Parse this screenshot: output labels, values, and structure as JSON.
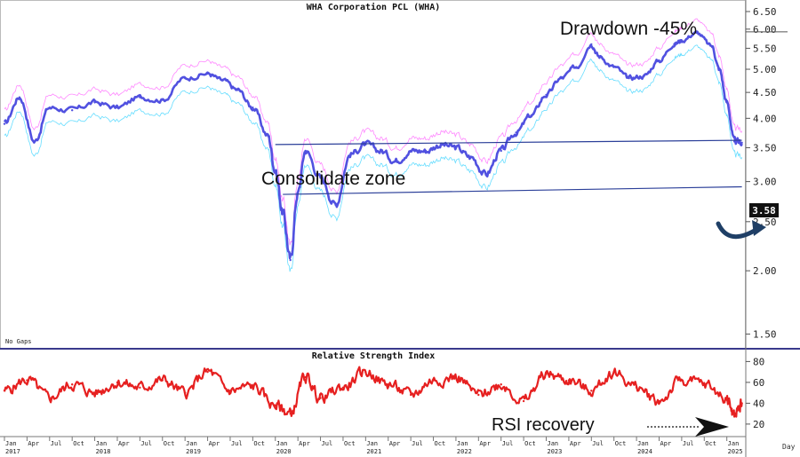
{
  "chart_data": [
    {
      "type": "line",
      "title": "WHA Corporation PCL (WHA)",
      "note": "No Gaps",
      "y_scale": "log",
      "ylim": [
        1.42,
        6.85
      ],
      "y_ticks": [
        "6.50",
        "6.00",
        "5.50",
        "5.00",
        "4.50",
        "4.00",
        "3.50",
        "3.00",
        "2.50",
        "2.00",
        "1.50"
      ],
      "last_price_label": "3.58",
      "annotations": {
        "drawdown": "Drawdown -45%",
        "consolidate": "Consolidate zone"
      },
      "series": [
        {
          "color": "#5151e0",
          "x": [
            "2017-01",
            "2017-03",
            "2017-05",
            "2017-07",
            "2017-10",
            "2018-01",
            "2018-04",
            "2018-07",
            "2018-10",
            "2019-01",
            "2019-04",
            "2019-06",
            "2019-08",
            "2019-10",
            "2019-12",
            "2020-01",
            "2020-02",
            "2020-03",
            "2020-04",
            "2020-05",
            "2020-07",
            "2020-09",
            "2020-11",
            "2021-01",
            "2021-03",
            "2021-05",
            "2021-07",
            "2021-09",
            "2021-11",
            "2022-01",
            "2022-03",
            "2022-05",
            "2022-07",
            "2022-09",
            "2022-11",
            "2023-01",
            "2023-03",
            "2023-05",
            "2023-07",
            "2023-08",
            "2023-10",
            "2023-12",
            "2024-02",
            "2024-04",
            "2024-06",
            "2024-07",
            "2024-09",
            "2024-11",
            "2024-12",
            "2025-01",
            "2025-02",
            "2025-03"
          ],
          "y": [
            3.9,
            4.4,
            3.6,
            4.2,
            4.15,
            4.3,
            4.2,
            4.4,
            4.35,
            4.8,
            4.9,
            4.75,
            4.55,
            4.2,
            3.7,
            3.15,
            2.6,
            2.1,
            2.85,
            3.45,
            3.05,
            2.7,
            3.4,
            3.55,
            3.45,
            3.3,
            3.45,
            3.45,
            3.55,
            3.5,
            3.35,
            3.1,
            3.45,
            3.75,
            4.05,
            4.45,
            4.8,
            5.05,
            5.6,
            5.3,
            5.05,
            4.8,
            4.85,
            5.2,
            5.6,
            5.7,
            5.9,
            5.55,
            5.0,
            4.3,
            3.6,
            3.58
          ]
        }
      ],
      "trendlines": [
        {
          "x": [
            "2020-01",
            "2025-03"
          ],
          "y": [
            3.55,
            3.62
          ]
        },
        {
          "x": [
            "2020-02",
            "2025-03"
          ],
          "y": [
            2.83,
            2.93
          ]
        }
      ]
    },
    {
      "type": "line",
      "title": "Relative Strength Index",
      "ylim": [
        8,
        88
      ],
      "y_ticks": [
        "80",
        "60",
        "40",
        "20"
      ],
      "annotations": {
        "rsi": "RSI recovery"
      },
      "x_axis": {
        "months": [
          "Jan",
          "Apr",
          "Jul",
          "Oct",
          "Jan",
          "Apr",
          "Jul",
          "Oct",
          "Jan",
          "Apr",
          "Jul",
          "Oct",
          "Jan",
          "Apr",
          "Jul",
          "Oct",
          "Jan",
          "Apr",
          "Jul",
          "Oct",
          "Jan",
          "Apr",
          "Jul",
          "Oct",
          "Jan",
          "Apr",
          "Jul",
          "Oct",
          "Jan",
          "Apr",
          "Jul",
          "Oct",
          "Jan"
        ],
        "years": [
          "2017",
          "2018",
          "2019",
          "2020",
          "2021",
          "2022",
          "2023",
          "2024",
          "2025"
        ],
        "period": "Day"
      },
      "series": [
        {
          "color": "#e62020",
          "x": [
            "2017-01",
            "2017-04",
            "2017-07",
            "2017-10",
            "2018-01",
            "2018-04",
            "2018-07",
            "2018-10",
            "2019-01",
            "2019-04",
            "2019-07",
            "2019-10",
            "2020-01",
            "2020-03",
            "2020-05",
            "2020-07",
            "2020-10",
            "2021-01",
            "2021-04",
            "2021-07",
            "2021-10",
            "2022-01",
            "2022-04",
            "2022-07",
            "2022-10",
            "2023-01",
            "2023-04",
            "2023-07",
            "2023-10",
            "2024-01",
            "2024-04",
            "2024-07",
            "2024-10",
            "2025-01",
            "2025-02",
            "2025-03"
          ],
          "y": [
            52,
            62,
            45,
            58,
            50,
            60,
            55,
            62,
            50,
            70,
            52,
            56,
            38,
            30,
            65,
            45,
            55,
            70,
            58,
            48,
            62,
            65,
            48,
            58,
            42,
            68,
            62,
            52,
            70,
            55,
            42,
            62,
            58,
            45,
            28,
            40
          ]
        }
      ]
    }
  ]
}
